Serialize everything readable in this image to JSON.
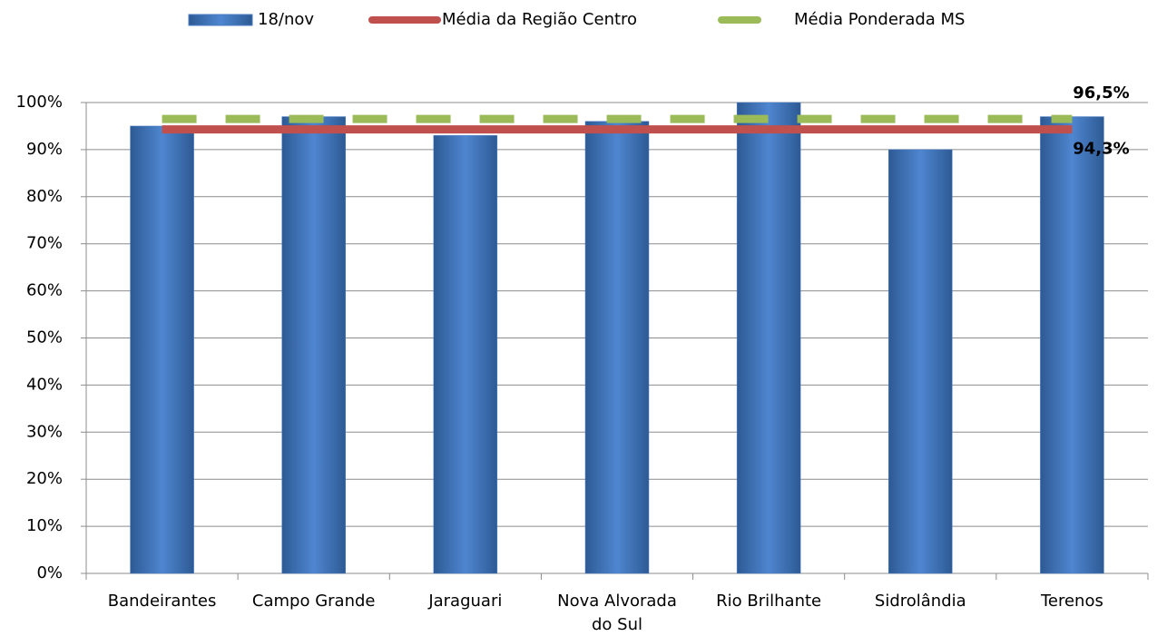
{
  "chart_data": {
    "type": "bar",
    "categories": [
      "Bandeirantes",
      "Campo Grande",
      "Jaraguari",
      "Nova Alvorada do Sul",
      "Rio Brilhante",
      "Sidrolândia",
      "Terenos"
    ],
    "series": [
      {
        "name": "18/nov",
        "type": "bar",
        "color": "#4a7ec5",
        "values": [
          95,
          97,
          93,
          96,
          100,
          90,
          97
        ]
      },
      {
        "name": "Média da Região Centro",
        "type": "line",
        "color": "#c0504d",
        "dashed": false,
        "values": [
          94.3,
          94.3,
          94.3,
          94.3,
          94.3,
          94.3,
          94.3
        ],
        "value_labels": [
          null,
          null,
          null,
          null,
          null,
          null,
          "94,3%"
        ]
      },
      {
        "name": "Média Ponderada MS",
        "type": "line",
        "color": "#9bbb59",
        "dashed": true,
        "values": [
          96.5,
          96.5,
          96.5,
          96.5,
          96.5,
          96.5,
          96.5
        ],
        "value_labels": [
          null,
          null,
          null,
          null,
          null,
          null,
          "96,5%"
        ]
      }
    ],
    "ylim": [
      0,
      100
    ],
    "yticks": [
      {
        "value": 0,
        "label": "0%"
      },
      {
        "value": 10,
        "label": "10%"
      },
      {
        "value": 20,
        "label": "20%"
      },
      {
        "value": 30,
        "label": "30%"
      },
      {
        "value": 40,
        "label": "40%"
      },
      {
        "value": 50,
        "label": "50%"
      },
      {
        "value": 60,
        "label": "60%"
      },
      {
        "value": 70,
        "label": "70%"
      },
      {
        "value": 80,
        "label": "80%"
      },
      {
        "value": 90,
        "label": "90%"
      },
      {
        "value": 100,
        "label": "100%"
      }
    ],
    "grid": true,
    "legend": "top"
  }
}
